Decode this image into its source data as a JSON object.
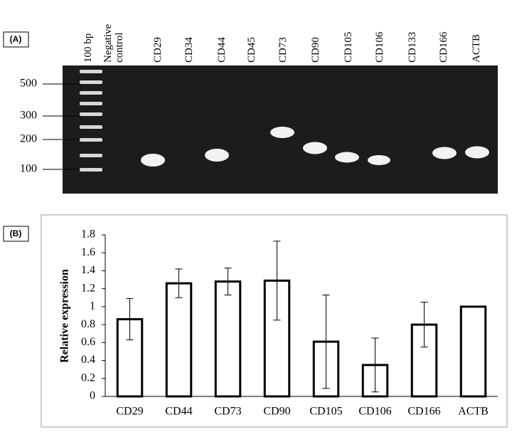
{
  "panel_a": {
    "label": "(A)",
    "lanes": [
      "100 bp",
      "Negative control",
      "CD29",
      "CD34",
      "CD44",
      "CD45",
      "CD73",
      "CD90",
      "CD105",
      "CD106",
      "CD133",
      "CD166",
      "ACTB"
    ],
    "markers": [
      500,
      300,
      200,
      100
    ]
  },
  "panel_b": {
    "label": "(B)"
  },
  "chart_data": {
    "type": "bar",
    "y_label": "Relative expression",
    "categories": [
      "CD29",
      "CD44",
      "CD73",
      "CD90",
      "CD105",
      "CD106",
      "CD166",
      "ACTB"
    ],
    "values": [
      0.86,
      1.26,
      1.28,
      1.29,
      0.61,
      0.35,
      0.8,
      1.0
    ],
    "errors": [
      0.23,
      0.16,
      0.15,
      0.44,
      0.52,
      0.3,
      0.25,
      0
    ],
    "color": "#ffffff",
    "ylim": [
      0,
      1.8
    ],
    "yticks": [
      0,
      0.2,
      0.4,
      0.6,
      0.8,
      1,
      1.2,
      1.4,
      1.6,
      1.8
    ]
  }
}
